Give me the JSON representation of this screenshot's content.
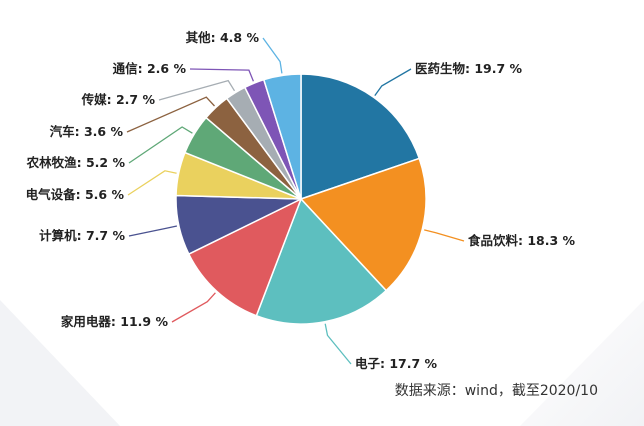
{
  "chart_data": {
    "type": "pie",
    "slices": [
      {
        "label": "医药生物",
        "value": 19.7,
        "display": "19.7 %",
        "color": "#2276a3"
      },
      {
        "label": "食品饮料",
        "value": 18.3,
        "display": "18.3 %",
        "color": "#f39021"
      },
      {
        "label": "电子",
        "value": 17.7,
        "display": "17.7 %",
        "color": "#5dbfbf"
      },
      {
        "label": "家用电器",
        "value": 11.9,
        "display": "11.9 %",
        "color": "#e05a5e"
      },
      {
        "label": "计算机",
        "value": 7.7,
        "display": "7.7 %",
        "color": "#4a5290"
      },
      {
        "label": "电气设备",
        "value": 5.6,
        "display": "5.6 %",
        "color": "#ead15e"
      },
      {
        "label": "农林牧渔",
        "value": 5.2,
        "display": "5.2 %",
        "color": "#5fa877"
      },
      {
        "label": "汽车",
        "value": 3.6,
        "display": "3.6 %",
        "color": "#8c6240"
      },
      {
        "label": "传媒",
        "value": 2.7,
        "display": "2.7 %",
        "color": "#a6adb3"
      },
      {
        "label": "通信",
        "value": 2.6,
        "display": "2.6 %",
        "color": "#7e55b6"
      },
      {
        "label": "其他",
        "value": 4.8,
        "display": "4.8 %",
        "color": "#5db3e3"
      }
    ],
    "label_separator": ": ",
    "start_angle": "12 o'clock",
    "direction": "clockwise",
    "legend": "none"
  },
  "source_note": "数据来源：wind，截至2020/10"
}
